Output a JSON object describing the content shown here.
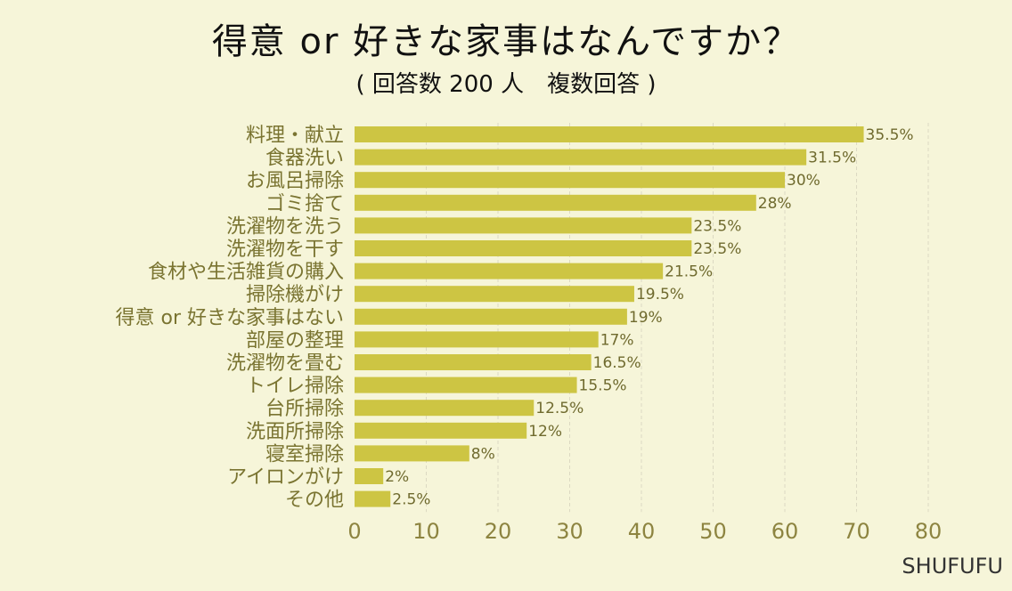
{
  "title": "得意 or 好きな家事はなんですか？",
  "subtitle": "( 回答数 200 人　複数回答 )",
  "brand": "SHUFUFU",
  "colors": {
    "background": "#f6f5d9",
    "bar": "#cdc543",
    "grid": "#dcd9c2"
  },
  "chart_data": {
    "type": "bar",
    "orientation": "horizontal",
    "categories": [
      "料理・献立",
      "食器洗い",
      "お風呂掃除",
      "ゴミ捨て",
      "洗濯物を洗う",
      "洗濯物を干す",
      "食材や生活雑貨の購入",
      "掃除機がけ",
      "得意 or 好きな家事はない",
      "部屋の整理",
      "洗濯物を畳む",
      "トイレ掃除",
      "台所掃除",
      "洗面所掃除",
      "寝室掃除",
      "アイロンがけ",
      "その他"
    ],
    "values": [
      71,
      63,
      60,
      56,
      47,
      47,
      43,
      39,
      38,
      34,
      33,
      31,
      25,
      24,
      16,
      4,
      5
    ],
    "value_labels": [
      "35.5%",
      "31.5%",
      "30%",
      "28%",
      "23.5%",
      "23.5%",
      "21.5%",
      "19.5%",
      "19%",
      "17%",
      "16.5%",
      "15.5%",
      "12.5%",
      "12%",
      "8%",
      "2%",
      "2.5%"
    ],
    "xlim": [
      0,
      80
    ],
    "xticks": [
      0,
      10,
      20,
      30,
      40,
      50,
      60,
      70,
      80
    ],
    "grid": true,
    "title": "得意 or 好きな家事はなんですか？",
    "subtitle": "( 回答数 200 人　複数回答 )"
  }
}
